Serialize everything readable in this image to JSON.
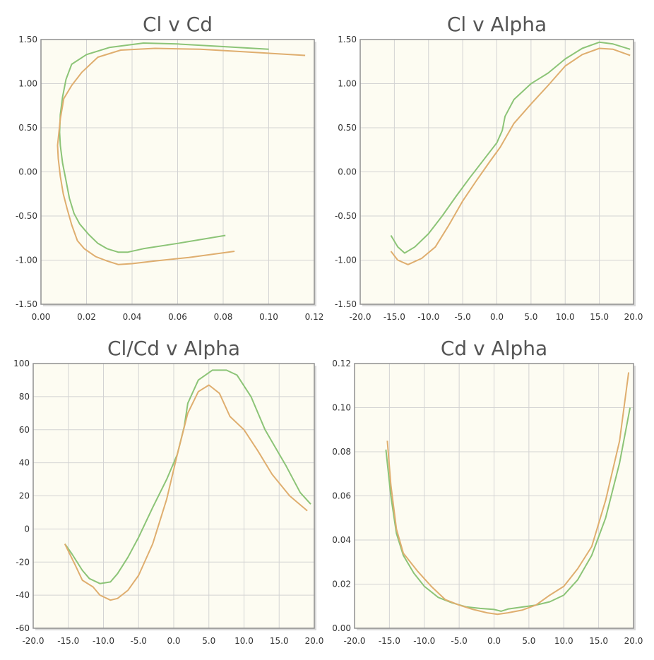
{
  "colors": {
    "plot_background": "#fdfcf2",
    "grid": "#d3d3d3",
    "axis": "#909090",
    "series_green": "#8cc477",
    "series_orange": "#dfae6f",
    "title_text": "#555555",
    "tick_text": "#333333"
  },
  "chart_data": [
    {
      "type": "line",
      "title": "Cl v Cd",
      "xlabel": "",
      "ylabel": "",
      "xlim": [
        0,
        0.12
      ],
      "ylim": [
        -1.5,
        1.5
      ],
      "x_ticks": [
        "0.00",
        "0.02",
        "0.04",
        "0.06",
        "0.08",
        "0.10",
        "0.12"
      ],
      "y_ticks": [
        "1.50",
        "1.00",
        "0.50",
        "0.00",
        "-0.50",
        "-1.00",
        "-1.50"
      ],
      "grid": true,
      "series": [
        {
          "color": "#8cc477",
          "points": [
            [
              0.081,
              -0.72
            ],
            [
              0.06,
              -0.81
            ],
            [
              0.045,
              -0.87
            ],
            [
              0.038,
              -0.91
            ],
            [
              0.034,
              -0.91
            ],
            [
              0.029,
              -0.87
            ],
            [
              0.025,
              -0.81
            ],
            [
              0.021,
              -0.71
            ],
            [
              0.017,
              -0.59
            ],
            [
              0.0145,
              -0.47
            ],
            [
              0.0125,
              -0.3
            ],
            [
              0.011,
              -0.1
            ],
            [
              0.0095,
              0.1
            ],
            [
              0.0085,
              0.3
            ],
            [
              0.0082,
              0.45
            ],
            [
              0.0085,
              0.65
            ],
            [
              0.0095,
              0.85
            ],
            [
              0.011,
              1.05
            ],
            [
              0.0135,
              1.22
            ],
            [
              0.02,
              1.33
            ],
            [
              0.03,
              1.41
            ],
            [
              0.045,
              1.46
            ],
            [
              0.06,
              1.45
            ],
            [
              0.08,
              1.42
            ],
            [
              0.1,
              1.39
            ]
          ]
        },
        {
          "color": "#dfae6f",
          "points": [
            [
              0.085,
              -0.9
            ],
            [
              0.065,
              -0.97
            ],
            [
              0.05,
              -1.01
            ],
            [
              0.04,
              -1.04
            ],
            [
              0.034,
              -1.05
            ],
            [
              0.029,
              -1.01
            ],
            [
              0.024,
              -0.96
            ],
            [
              0.019,
              -0.87
            ],
            [
              0.016,
              -0.78
            ],
            [
              0.0135,
              -0.6
            ],
            [
              0.0115,
              -0.42
            ],
            [
              0.0098,
              -0.25
            ],
            [
              0.0085,
              -0.05
            ],
            [
              0.0076,
              0.15
            ],
            [
              0.0073,
              0.3
            ],
            [
              0.0085,
              0.6
            ],
            [
              0.01,
              0.83
            ],
            [
              0.0135,
              0.98
            ],
            [
              0.018,
              1.13
            ],
            [
              0.025,
              1.3
            ],
            [
              0.035,
              1.38
            ],
            [
              0.05,
              1.4
            ],
            [
              0.07,
              1.39
            ],
            [
              0.09,
              1.36
            ],
            [
              0.116,
              1.32
            ]
          ]
        }
      ]
    },
    {
      "type": "line",
      "title": "Cl v Alpha",
      "xlabel": "",
      "ylabel": "",
      "xlim": [
        -20,
        20
      ],
      "ylim": [
        -1.5,
        1.5
      ],
      "x_ticks": [
        "-20.0",
        "-15.0",
        "-10.0",
        "-5.0",
        "0.0",
        "5.0",
        "10.0",
        "15.0",
        "20.0"
      ],
      "y_ticks": [
        "1.50",
        "1.00",
        "0.50",
        "0.00",
        "-0.50",
        "-1.00",
        "-1.50"
      ],
      "grid": true,
      "series": [
        {
          "color": "#8cc477",
          "points": [
            [
              -15.5,
              -0.72
            ],
            [
              -14.5,
              -0.85
            ],
            [
              -13.5,
              -0.92
            ],
            [
              -12,
              -0.85
            ],
            [
              -10,
              -0.7
            ],
            [
              -8,
              -0.5
            ],
            [
              -6,
              -0.28
            ],
            [
              -4,
              -0.07
            ],
            [
              -2,
              0.13
            ],
            [
              0,
              0.33
            ],
            [
              0.8,
              0.47
            ],
            [
              1.2,
              0.63
            ],
            [
              2.5,
              0.82
            ],
            [
              5,
              1.0
            ],
            [
              7.5,
              1.12
            ],
            [
              10,
              1.28
            ],
            [
              12.5,
              1.4
            ],
            [
              15,
              1.47
            ],
            [
              17,
              1.45
            ],
            [
              19.5,
              1.39
            ]
          ]
        },
        {
          "color": "#dfae6f",
          "points": [
            [
              -15.5,
              -0.9
            ],
            [
              -14.5,
              -1.0
            ],
            [
              -13,
              -1.05
            ],
            [
              -11,
              -0.98
            ],
            [
              -9,
              -0.85
            ],
            [
              -7,
              -0.6
            ],
            [
              -5,
              -0.33
            ],
            [
              -3,
              -0.1
            ],
            [
              -1,
              0.12
            ],
            [
              0.5,
              0.28
            ],
            [
              2.5,
              0.55
            ],
            [
              5,
              0.77
            ],
            [
              7.5,
              0.98
            ],
            [
              10,
              1.2
            ],
            [
              12.5,
              1.33
            ],
            [
              15,
              1.4
            ],
            [
              17,
              1.39
            ],
            [
              19.5,
              1.32
            ]
          ]
        }
      ]
    },
    {
      "type": "line",
      "title": "Cl/Cd v Alpha",
      "xlabel": "",
      "ylabel": "",
      "xlim": [
        -20,
        20
      ],
      "ylim": [
        -60,
        100
      ],
      "x_ticks": [
        "-20.0",
        "-15.0",
        "-10.0",
        "-5.0",
        "0.0",
        "5.0",
        "10.0",
        "15.0",
        "20.0"
      ],
      "y_ticks": [
        "100",
        "80",
        "60",
        "40",
        "20",
        "0",
        "-20",
        "-40",
        "-60"
      ],
      "grid": true,
      "series": [
        {
          "color": "#8cc477",
          "points": [
            [
              -15.5,
              -9
            ],
            [
              -14.5,
              -15
            ],
            [
              -13,
              -25
            ],
            [
              -12,
              -30
            ],
            [
              -10.5,
              -33
            ],
            [
              -9,
              -32
            ],
            [
              -8,
              -27
            ],
            [
              -6.5,
              -17
            ],
            [
              -5,
              -5
            ],
            [
              -3,
              13
            ],
            [
              -1,
              30
            ],
            [
              0.5,
              45
            ],
            [
              1.5,
              62
            ],
            [
              2,
              76
            ],
            [
              3.5,
              90
            ],
            [
              5.5,
              96
            ],
            [
              7.5,
              96
            ],
            [
              9,
              93
            ],
            [
              11,
              80
            ],
            [
              13,
              60
            ],
            [
              16,
              38
            ],
            [
              18,
              22
            ],
            [
              19.5,
              15
            ]
          ]
        },
        {
          "color": "#dfae6f",
          "points": [
            [
              -15.5,
              -9
            ],
            [
              -14,
              -22
            ],
            [
              -13,
              -31
            ],
            [
              -11.5,
              -35
            ],
            [
              -10.5,
              -40
            ],
            [
              -9,
              -43
            ],
            [
              -8,
              -42
            ],
            [
              -6.5,
              -37
            ],
            [
              -5,
              -28
            ],
            [
              -3,
              -9
            ],
            [
              -1,
              18
            ],
            [
              0.5,
              45
            ],
            [
              2,
              70
            ],
            [
              3.5,
              83
            ],
            [
              5,
              87
            ],
            [
              6.5,
              82
            ],
            [
              8,
              68
            ],
            [
              10,
              60
            ],
            [
              12,
              47
            ],
            [
              14,
              33
            ],
            [
              16.5,
              20
            ],
            [
              19,
              11
            ]
          ]
        }
      ]
    },
    {
      "type": "line",
      "title": "Cd v Alpha",
      "xlabel": "",
      "ylabel": "",
      "xlim": [
        -20,
        20
      ],
      "ylim": [
        0,
        0.12
      ],
      "x_ticks": [
        "-20.0",
        "-15.0",
        "-10.0",
        "-5.0",
        "0.0",
        "5.0",
        "10.0",
        "15.0",
        "20.0"
      ],
      "y_ticks": [
        "0.12",
        "0.10",
        "0.08",
        "0.06",
        "0.04",
        "0.02",
        "0.00"
      ],
      "grid": true,
      "series": [
        {
          "color": "#8cc477",
          "points": [
            [
              -15.5,
              0.081
            ],
            [
              -14.8,
              0.06
            ],
            [
              -14,
              0.043
            ],
            [
              -13,
              0.033
            ],
            [
              -11.5,
              0.025
            ],
            [
              -10,
              0.019
            ],
            [
              -8,
              0.014
            ],
            [
              -6,
              0.0115
            ],
            [
              -4,
              0.0097
            ],
            [
              -2,
              0.009
            ],
            [
              0,
              0.0085
            ],
            [
              1,
              0.0077
            ],
            [
              2,
              0.0087
            ],
            [
              4,
              0.0096
            ],
            [
              6,
              0.0105
            ],
            [
              8,
              0.012
            ],
            [
              10,
              0.015
            ],
            [
              12,
              0.022
            ],
            [
              14,
              0.033
            ],
            [
              16,
              0.05
            ],
            [
              18,
              0.075
            ],
            [
              19.5,
              0.1
            ]
          ]
        },
        {
          "color": "#dfae6f",
          "points": [
            [
              -15.3,
              0.085
            ],
            [
              -14.8,
              0.065
            ],
            [
              -14,
              0.045
            ],
            [
              -13,
              0.034
            ],
            [
              -11,
              0.026
            ],
            [
              -9,
              0.019
            ],
            [
              -7,
              0.013
            ],
            [
              -5,
              0.0105
            ],
            [
              -3,
              0.0085
            ],
            [
              -1,
              0.007
            ],
            [
              0.5,
              0.0063
            ],
            [
              2,
              0.007
            ],
            [
              4,
              0.0082
            ],
            [
              6,
              0.0105
            ],
            [
              8,
              0.015
            ],
            [
              10,
              0.019
            ],
            [
              12,
              0.027
            ],
            [
              14,
              0.037
            ],
            [
              16,
              0.058
            ],
            [
              18,
              0.085
            ],
            [
              19.3,
              0.116
            ]
          ]
        }
      ]
    }
  ]
}
